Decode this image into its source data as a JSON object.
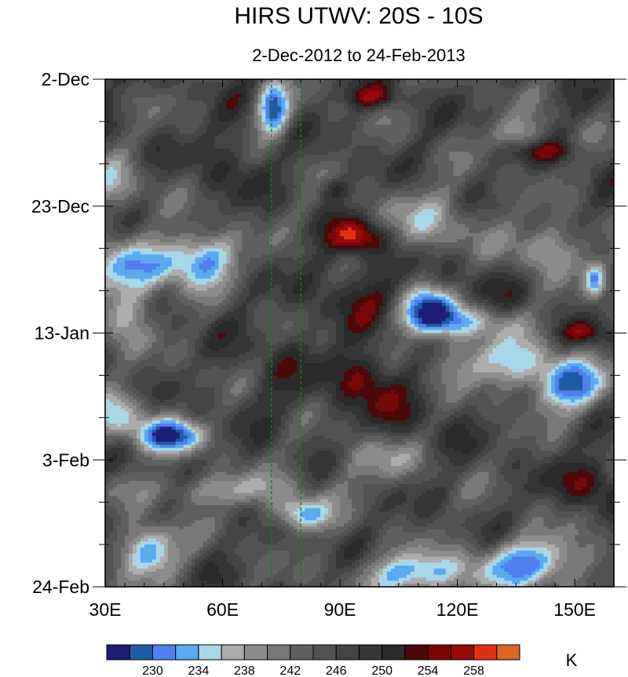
{
  "chart_data": {
    "type": "heatmap",
    "title": "HIRS UTWV: 20S - 10S",
    "subtitle": "2-Dec-2012 to 24-Feb-2013",
    "x_axis": {
      "range": [
        30,
        160
      ],
      "major_ticks": [
        30,
        60,
        90,
        120,
        150
      ],
      "tick_labels": [
        "30E",
        "60E",
        "90E",
        "120E",
        "150E"
      ],
      "minor_step": 5
    },
    "y_axis": {
      "range_days": [
        0,
        84
      ],
      "major_ticks": [
        0,
        21,
        42,
        63,
        84
      ],
      "tick_labels": [
        "2-Dec",
        "23-Dec",
        "13-Jan",
        "3-Feb",
        "24-Feb"
      ],
      "minor_step": 7
    },
    "reference_lines_lon": [
      72.5,
      80
    ],
    "colorbar": {
      "units": "K",
      "levels": [
        228,
        230,
        232,
        234,
        236,
        238,
        240,
        242,
        244,
        246,
        248,
        250,
        252,
        254,
        256,
        258,
        260
      ],
      "labels": [
        "230",
        "234",
        "238",
        "242",
        "246",
        "250",
        "254",
        "258"
      ],
      "colors": [
        "#1e1e78",
        "#1f5aa5",
        "#4f7ff0",
        "#5aaaf0",
        "#a8d8e8",
        "#acacac",
        "#8c8c8c",
        "#787878",
        "#606060",
        "#525252",
        "#444444",
        "#363636",
        "#2a2a2a",
        "#4a0808",
        "#780808",
        "#990a0a",
        "#e03012",
        "#dd6622"
      ]
    },
    "features": [
      {
        "lon": 95,
        "day": 26,
        "value": 258,
        "sx": 5,
        "sy": 2
      },
      {
        "lon": 98,
        "day": 3,
        "value": 254,
        "sx": 5,
        "sy": 1.3
      },
      {
        "lon": 96,
        "day": 49,
        "value": 254,
        "sx": 5,
        "sy": 3
      },
      {
        "lon": 155,
        "day": 67,
        "value": 253,
        "sx": 7,
        "sy": 3
      },
      {
        "lon": 152,
        "day": 42,
        "value": 253,
        "sx": 4,
        "sy": 1.3
      },
      {
        "lon": 142,
        "day": 12,
        "value": 252,
        "sx": 6,
        "sy": 1.3
      },
      {
        "lon": 88,
        "day": 18,
        "value": 252,
        "sx": 3,
        "sy": 1.3
      },
      {
        "lon": 73,
        "day": 5,
        "value": 229,
        "sx": 3,
        "sy": 3
      },
      {
        "lon": 40,
        "day": 31,
        "value": 236,
        "sx": 12,
        "sy": 3
      },
      {
        "lon": 55,
        "day": 29,
        "value": 234,
        "sx": 6,
        "sy": 3
      },
      {
        "lon": 35,
        "day": 38,
        "value": 236,
        "sx": 5,
        "sy": 4
      },
      {
        "lon": 113,
        "day": 38,
        "value": 230,
        "sx": 5,
        "sy": 3
      },
      {
        "lon": 122,
        "day": 40,
        "value": 236,
        "sx": 10,
        "sy": 2
      },
      {
        "lon": 148,
        "day": 51,
        "value": 232,
        "sx": 7,
        "sy": 3
      },
      {
        "lon": 130,
        "day": 47,
        "value": 236,
        "sx": 13,
        "sy": 3
      },
      {
        "lon": 47,
        "day": 59,
        "value": 230,
        "sx": 6,
        "sy": 2
      },
      {
        "lon": 34,
        "day": 56,
        "value": 236,
        "sx": 6,
        "sy": 3
      },
      {
        "lon": 80,
        "day": 72,
        "value": 232,
        "sx": 5,
        "sy": 2
      },
      {
        "lon": 41,
        "day": 78,
        "value": 230,
        "sx": 5,
        "sy": 3
      },
      {
        "lon": 110,
        "day": 82,
        "value": 232,
        "sx": 10,
        "sy": 2.5
      },
      {
        "lon": 140,
        "day": 80,
        "value": 232,
        "sx": 10,
        "sy": 3
      },
      {
        "lon": 100,
        "day": 63,
        "value": 238,
        "sx": 8,
        "sy": 3
      },
      {
        "lon": 60,
        "day": 68,
        "value": 238,
        "sx": 14,
        "sy": 2
      },
      {
        "lon": 114,
        "day": 24,
        "value": 238,
        "sx": 10,
        "sy": 4
      },
      {
        "lon": 143,
        "day": 28,
        "value": 236,
        "sx": 7,
        "sy": 3
      },
      {
        "lon": 32,
        "day": 18,
        "value": 238,
        "sx": 6,
        "sy": 3
      },
      {
        "lon": 135,
        "day": 9,
        "value": 238,
        "sx": 5,
        "sy": 2
      },
      {
        "lon": 155,
        "day": 33,
        "value": 234,
        "sx": 2,
        "sy": 2
      },
      {
        "lon": 62,
        "day": 13,
        "value": 250,
        "sx": 6,
        "sy": 5
      },
      {
        "lon": 95,
        "day": 35,
        "value": 251,
        "sx": 8,
        "sy": 5
      },
      {
        "lon": 105,
        "day": 55,
        "value": 250,
        "sx": 10,
        "sy": 6
      },
      {
        "lon": 75,
        "day": 48,
        "value": 249,
        "sx": 8,
        "sy": 6
      },
      {
        "lon": 124,
        "day": 33,
        "value": 249,
        "sx": 10,
        "sy": 5
      }
    ]
  }
}
